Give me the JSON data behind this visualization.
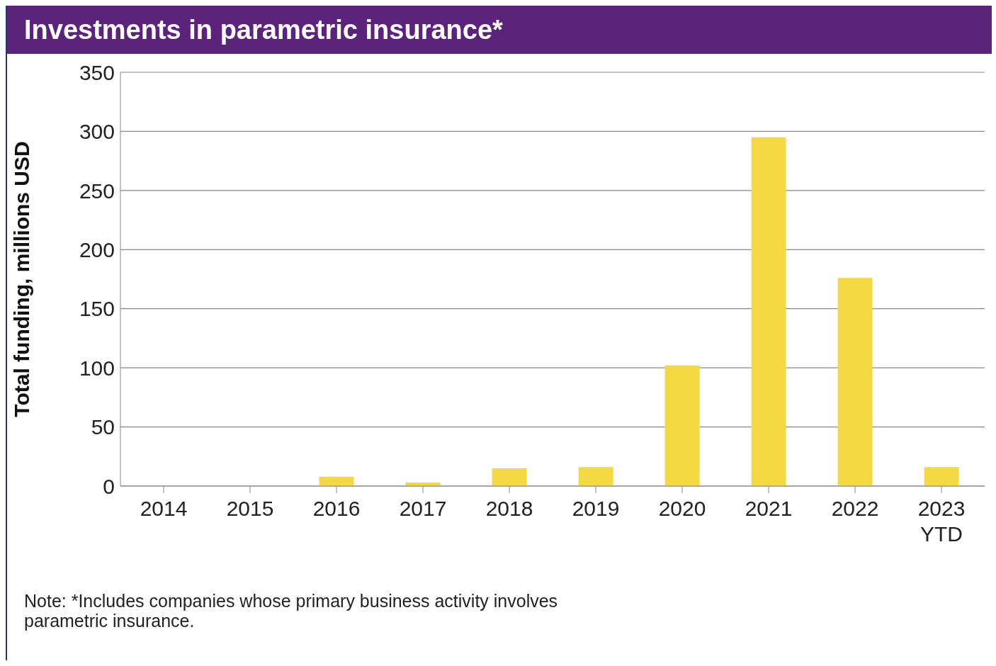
{
  "chart_data": {
    "type": "bar",
    "title": "Investments in parametric insurance*",
    "ylabel": "Total funding,  millions  USD",
    "categories": [
      "2014",
      "2015",
      "2016",
      "2017",
      "2018",
      "2019",
      "2020",
      "2021",
      "2022",
      "2023\nYTD"
    ],
    "values": [
      0,
      0,
      8,
      3,
      15,
      16,
      102,
      295,
      176,
      16
    ],
    "color": "#f5d942",
    "ylim": [
      0,
      350
    ],
    "yticks": [
      0,
      50,
      100,
      150,
      200,
      250,
      300,
      350
    ],
    "grid": "y",
    "annotations": [
      "Note: *Includes companies whose primary business activity involves\nparametric insurance."
    ]
  }
}
